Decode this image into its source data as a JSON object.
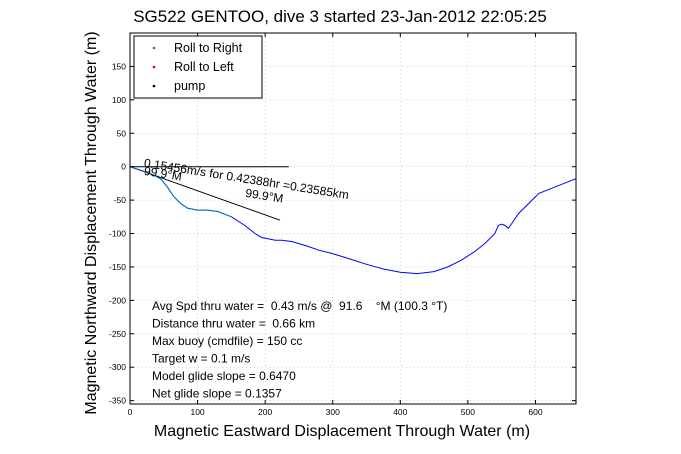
{
  "chart_data": {
    "type": "line",
    "title": "SG522 GENTOO, dive 3 started 23-Jan-2012 22:05:25",
    "xlabel": "Magnetic Eastward Displacement Through Water (m)",
    "ylabel": "Magnetic Northward Displacement Through Water (m)",
    "xlim": [
      0,
      660
    ],
    "ylim": [
      -355,
      200
    ],
    "x_ticks": [
      0,
      100,
      200,
      300,
      400,
      500,
      600
    ],
    "y_ticks": [
      150,
      100,
      50,
      0,
      -50,
      -100,
      -150,
      -200,
      -250,
      -300,
      -350
    ],
    "grid": true,
    "legend_position": "top-left",
    "legend": [
      {
        "label": "Roll to Right",
        "color": "#00b000",
        "marker": "dot"
      },
      {
        "label": "Roll to Left",
        "color": "#e00000",
        "marker": "dot"
      },
      {
        "label": "pump",
        "color": "#000000",
        "marker": "dot"
      }
    ],
    "series": [
      {
        "color": "#0000ff",
        "x": [
          0,
          15,
          30,
          45,
          55,
          65,
          75,
          85,
          100,
          115,
          130,
          150,
          170,
          185,
          195,
          205,
          215,
          225,
          240,
          260,
          280,
          300,
          325,
          350,
          375,
          400,
          425,
          450,
          470,
          490,
          510,
          525,
          535,
          540,
          542,
          545,
          550,
          555,
          560,
          565,
          575,
          590,
          605,
          630,
          660
        ],
        "y": [
          0,
          -5,
          -10,
          -18,
          -30,
          -45,
          -55,
          -62,
          -65,
          -65,
          -67,
          -75,
          -88,
          -100,
          -106,
          -108,
          -110,
          -110,
          -112,
          -118,
          -125,
          -130,
          -138,
          -146,
          -153,
          -158,
          -160,
          -157,
          -150,
          -140,
          -127,
          -115,
          -105,
          -100,
          -95,
          -88,
          -86,
          -88,
          -92,
          -85,
          -70,
          -55,
          -40,
          -30,
          -18
        ]
      }
    ],
    "reference_lines": [
      {
        "x": [
          0,
          235
        ],
        "y": [
          0,
          0
        ],
        "color": "#000000"
      },
      {
        "x": [
          0,
          222
        ],
        "y": [
          0,
          -80
        ],
        "color": "#000000"
      }
    ],
    "annotations": [
      {
        "text": "0.15456m/s for 0.42388hr =0.23585km",
        "x": 20,
        "y": 0,
        "rotation": 9
      },
      {
        "text": "99.9°M",
        "x": 20,
        "y": -12,
        "rotation": 9
      },
      {
        "text": "99.9°M",
        "x": 170,
        "y": -45,
        "rotation": 9
      }
    ],
    "stats": [
      "Avg Spd thru water =  0.43 m/s @  91.6    °M (100.3 °T)",
      "Distance thru water =  0.66 km",
      "Max buoy (cmdfile) = 150 cc",
      "Target w = 0.1 m/s",
      "Model glide slope = 0.6470",
      "Net glide slope = 0.1357"
    ]
  }
}
